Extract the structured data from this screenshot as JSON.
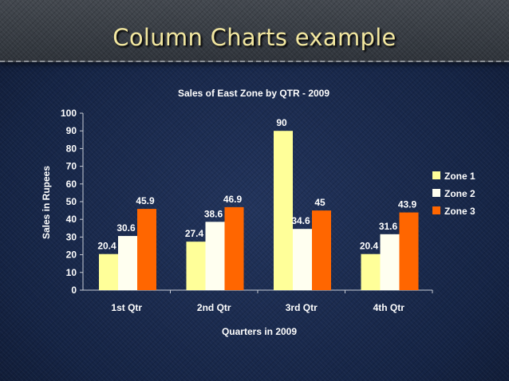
{
  "slide": {
    "title": "Column Charts example"
  },
  "colors": {
    "background": "#1a2a4c",
    "text": "#ffffff",
    "title": "#f2e7a0"
  },
  "chart_data": {
    "type": "bar",
    "title": "Sales of East Zone by QTR - 2009",
    "xlabel": "Quarters in 2009",
    "ylabel": "Sales in Rupees",
    "categories": [
      "1st Qtr",
      "2nd Qtr",
      "3rd Qtr",
      "4th Qtr"
    ],
    "ylim": [
      0,
      100
    ],
    "yticks": [
      0,
      10,
      20,
      30,
      40,
      50,
      60,
      70,
      80,
      90,
      100
    ],
    "grid": false,
    "legend": "right",
    "series": [
      {
        "name": "Zone 1",
        "color": "#ffff99",
        "values": [
          20.4,
          27.4,
          90,
          20.4
        ]
      },
      {
        "name": "Zone 2",
        "color": "#fffff0",
        "values": [
          30.6,
          38.6,
          34.6,
          31.6
        ]
      },
      {
        "name": "Zone 3",
        "color": "#ff6600",
        "values": [
          45.9,
          46.9,
          45,
          43.9
        ]
      }
    ]
  }
}
